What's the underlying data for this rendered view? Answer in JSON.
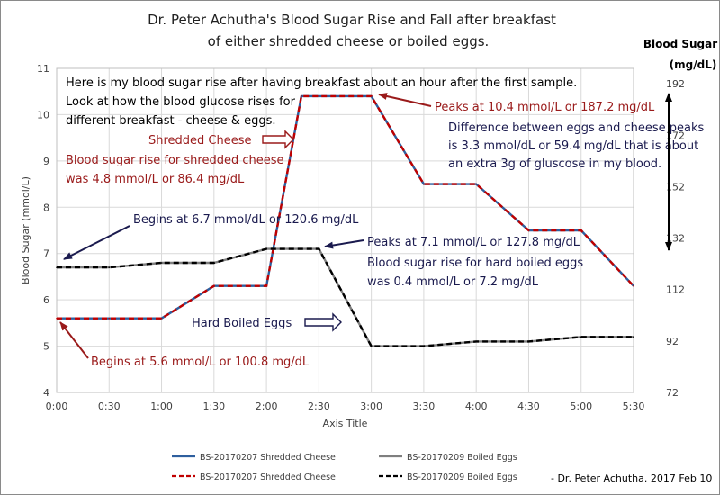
{
  "chart_data": {
    "type": "line",
    "title": [
      "Dr. Peter Achutha's Blood Sugar Rise and Fall after breakfast",
      "of either shredded cheese or boiled eggs."
    ],
    "xlabel": "Axis Title",
    "ylabel": "Blood Sugar (mmol/L)",
    "y2label": [
      "Blood Sugar",
      "(mg/dL)"
    ],
    "categories": [
      "0:00",
      "0:30",
      "1:00",
      "1:30",
      "2:00",
      "2:30",
      "3:00",
      "3:30",
      "4:00",
      "4:30",
      "5:00",
      "5:30"
    ],
    "ylim": [
      4,
      11
    ],
    "yticks": [
      "4",
      "5",
      "6",
      "7",
      "8",
      "9",
      "10",
      "11"
    ],
    "y2ticks": [
      "72",
      "92",
      "112",
      "132",
      "152",
      "172",
      "192"
    ],
    "grid": true,
    "series": [
      {
        "name": "BS-20170207 Shredded Cheese",
        "x": [
          "0:00",
          "0:30",
          "1:00",
          "1:30",
          "2:00",
          "2:20",
          "2:30",
          "3:00",
          "3:30",
          "4:00",
          "4:30",
          "5:00",
          "5:30"
        ],
        "values": [
          5.6,
          5.6,
          5.6,
          6.3,
          6.3,
          10.4,
          10.4,
          10.4,
          8.5,
          8.5,
          7.5,
          7.5,
          6.3
        ],
        "color": "#2e5f9e",
        "dash_color": "#c00000"
      },
      {
        "name": "BS-20170209 Boiled Eggs",
        "x": [
          "0:00",
          "0:30",
          "1:00",
          "1:30",
          "2:00",
          "2:30",
          "3:00",
          "3:30",
          "4:00",
          "4:30",
          "5:00",
          "5:30"
        ],
        "values": [
          6.7,
          6.7,
          6.8,
          6.8,
          7.1,
          7.1,
          5.0,
          5.0,
          5.1,
          5.1,
          5.2,
          5.2
        ],
        "color": "#7f7f7f",
        "dash_color": "#000000"
      }
    ],
    "legend": [
      {
        "label": "BS-20170207 Shredded Cheese",
        "style": "solid",
        "color": "#2e5f9e"
      },
      {
        "label": "BS-20170209 Boiled Eggs",
        "style": "solid",
        "color": "#7f7f7f"
      },
      {
        "label": "BS-20170207 Shredded Cheese",
        "style": "dashed",
        "color": "#c00000"
      },
      {
        "label": "BS-20170209 Boiled Eggs",
        "style": "dashed",
        "color": "#000000"
      }
    ],
    "legend_position": "bottom",
    "annotations": {
      "intro": [
        "Here is my blood sugar rise after having breakfast about an hour after the first sample.",
        "Look at how the blood glucose rises for",
        "different breakfast - cheese & eggs."
      ],
      "cheese_label": "Shredded Cheese",
      "cheese_rise": [
        "Blood sugar rise for shredded cheese",
        "was 4.8 mmol/L or 86.4 mg/dL"
      ],
      "cheese_peak": "Peaks at 10.4 mmol/L or 187.2 mg/dL",
      "difference": [
        "Difference between eggs and cheese peaks",
        "is 3.3 mmol/dL or 59.4 mg/dL that is about",
        "an extra 3g of gluscose in my blood."
      ],
      "egg_begin": "Begins at 6.7 mmol/dL or 120.6 mg/dL",
      "egg_peak": "Peaks at 7.1 mmol/L or 127.8 mg/dL",
      "egg_rise": [
        "Blood sugar rise for hard boiled eggs",
        "was 0.4 mmol/L or 7.2 mg/dL"
      ],
      "egg_label": "Hard Boiled Eggs",
      "cheese_begin": "Begins at 5.6 mmol/L or 100.8 mg/dL",
      "credit": "- Dr. Peter Achutha. 2017 Feb 10"
    },
    "colors": {
      "dark_red": "#9a1a1a",
      "navy": "#1a1a4e",
      "grid": "#d9d9d9"
    }
  }
}
